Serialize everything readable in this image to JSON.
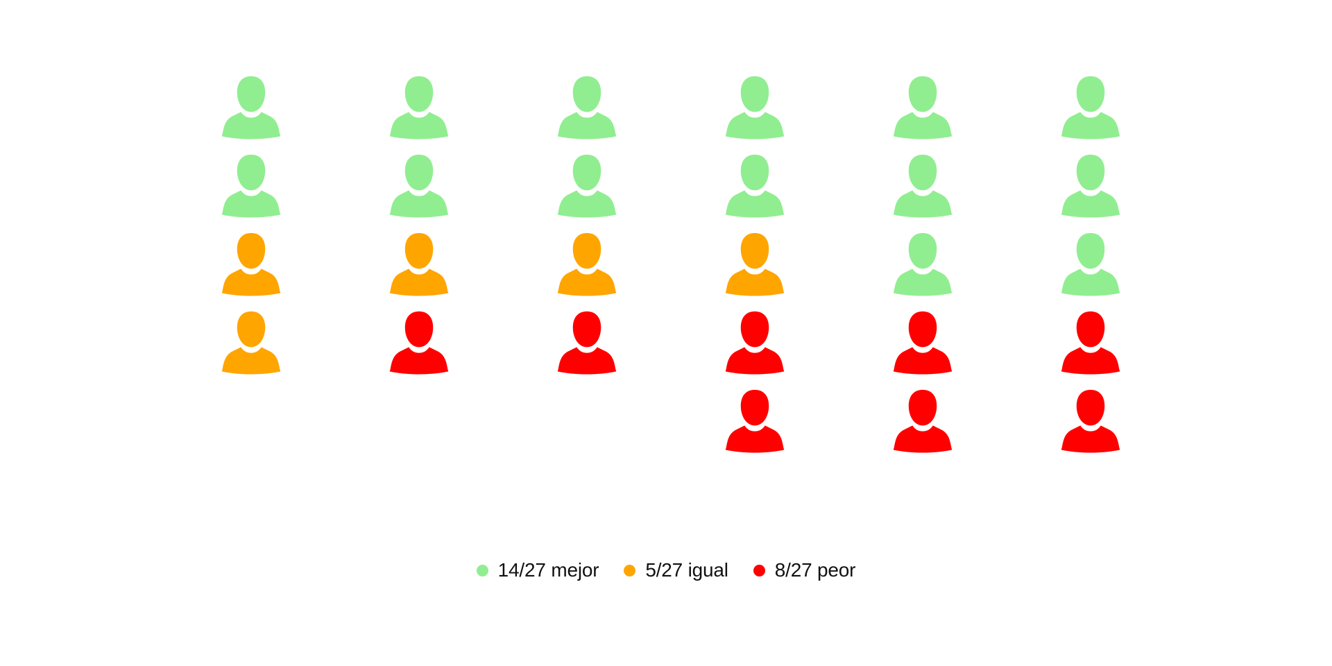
{
  "chart_data": {
    "type": "pictogram",
    "icon": "person-icon",
    "categories": [
      "mejor",
      "igual",
      "peor"
    ],
    "columns": [
      [
        "mejor",
        "mejor",
        "igual",
        "igual"
      ],
      [
        "mejor",
        "mejor",
        "igual",
        "peor"
      ],
      [
        "mejor",
        "mejor",
        "igual",
        "peor"
      ],
      [
        "mejor",
        "mejor",
        "igual",
        "peor",
        "peor"
      ],
      [
        "mejor",
        "mejor",
        "mejor",
        "peor",
        "peor"
      ],
      [
        "mejor",
        "mejor",
        "mejor",
        "peor",
        "peor"
      ]
    ],
    "series": [
      {
        "key": "mejor",
        "value": 14,
        "total": 27,
        "label": "14/27 mejor",
        "color": "#90EE90"
      },
      {
        "key": "igual",
        "value": 5,
        "total": 27,
        "label": "5/27 igual",
        "color": "#FFA500"
      },
      {
        "key": "peor",
        "value": 8,
        "total": 27,
        "label": "8/27 peor",
        "color": "#FF0000"
      }
    ],
    "legend_position": "bottom-center"
  }
}
